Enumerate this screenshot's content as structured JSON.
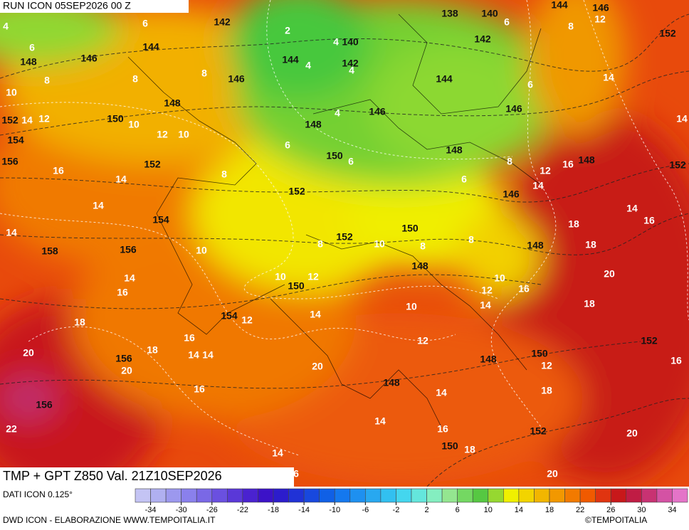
{
  "header": {
    "run": "RUN ICON 05SEP2026 00 Z",
    "product": "TMP + GPT Z850 Val. 21Z10SEP2026"
  },
  "footer": {
    "data_source": "DATI ICON 0.125°",
    "credit": "DWD ICON - ELABORAZIONE WWW.TEMPOITALIA.IT",
    "copyright": "©TEMPOITALIA"
  },
  "colorbar": {
    "ticks": [
      -34,
      -30,
      -26,
      -22,
      -18,
      -14,
      -10,
      -6,
      -2,
      2,
      6,
      10,
      14,
      18,
      22,
      26,
      30,
      34
    ],
    "colors": [
      "#c4c4f4",
      "#b0b0f0",
      "#9c98ee",
      "#8a80ec",
      "#7a68e6",
      "#6a50e0",
      "#5a38d8",
      "#4a22d0",
      "#3c12c8",
      "#2c1ccc",
      "#2032d6",
      "#1848de",
      "#1060e6",
      "#1478ee",
      "#1e90f0",
      "#28a8f0",
      "#32c0f0",
      "#44d6ee",
      "#64e6dc",
      "#84eec0",
      "#94e690",
      "#74d862",
      "#56c842",
      "#96d830",
      "#f0f000",
      "#f2d400",
      "#f2b600",
      "#f29800",
      "#f27a00",
      "#f05a00",
      "#e03410",
      "#c8181a",
      "#c01c44",
      "#c83272",
      "#d452a4",
      "#e474c8"
    ]
  },
  "map": {
    "gpt_labels": [
      142,
      138,
      140,
      144,
      146,
      152,
      144,
      146,
      148,
      144,
      140,
      142,
      142,
      146,
      144,
      148,
      146,
      146,
      152,
      150,
      148,
      154,
      150,
      148,
      156,
      152,
      148,
      152,
      152,
      146,
      154,
      152,
      150,
      148,
      158,
      156,
      148,
      150,
      154,
      148,
      150,
      152,
      156,
      148,
      156,
      152,
      150
    ],
    "temperature_labels": [
      4,
      6,
      2,
      4,
      6,
      8,
      12,
      6,
      8,
      8,
      8,
      4,
      4,
      6,
      14,
      10,
      14,
      12,
      10,
      12,
      10,
      4,
      6,
      6,
      8,
      12,
      16,
      14,
      16,
      14,
      8,
      6,
      14,
      14,
      14,
      16,
      18,
      10,
      8,
      10,
      8,
      8,
      18,
      14,
      14,
      16,
      10,
      12,
      10,
      12,
      16,
      20,
      12,
      14,
      10,
      14,
      18,
      18,
      16,
      14,
      14,
      18,
      12,
      20,
      20,
      12,
      16,
      20,
      16,
      14,
      18,
      14,
      16,
      18,
      22,
      20,
      14,
      20,
      6
    ]
  }
}
